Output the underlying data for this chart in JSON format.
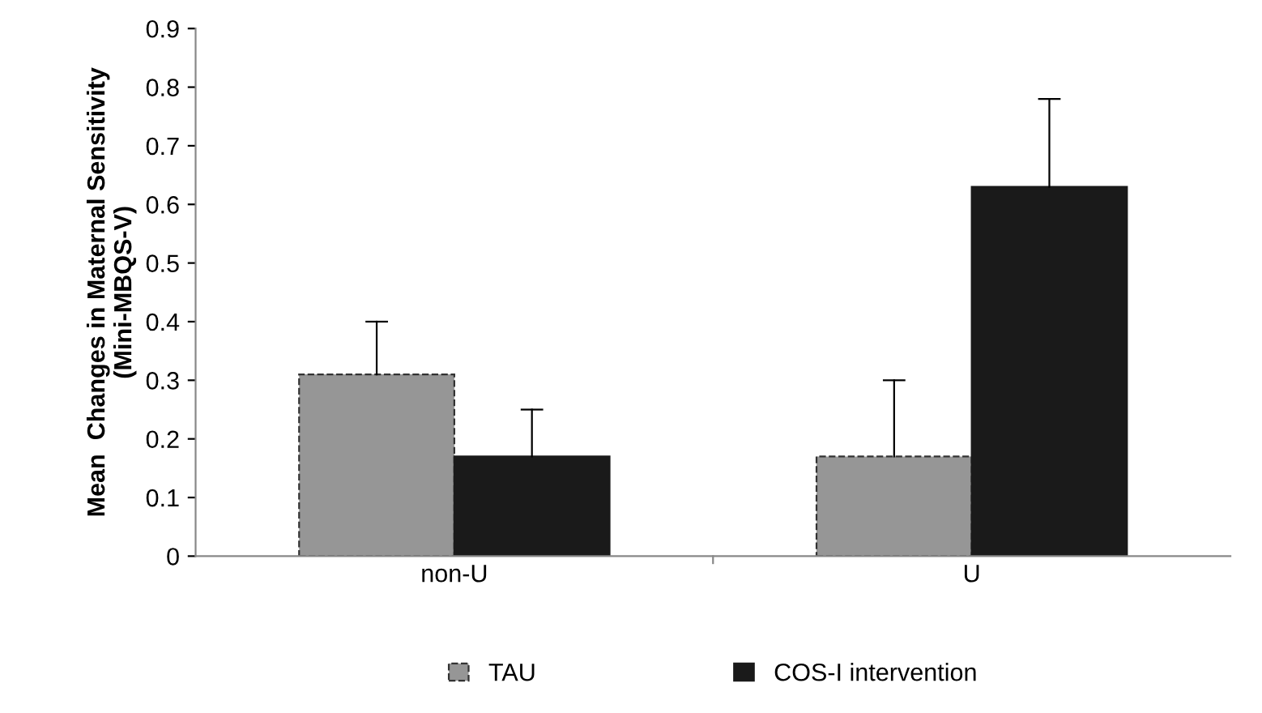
{
  "chart_data": {
    "type": "bar",
    "ylabel": "Mean  Changes in Maternal Sensitivity\n(Mini-MBQS-V)",
    "categories": [
      "non-U",
      "U"
    ],
    "series": [
      {
        "name": "TAU",
        "color": "#969696",
        "values": [
          0.31,
          0.17
        ],
        "errors": [
          [
            0.31,
            0.4
          ],
          [
            0.17,
            0.3
          ]
        ]
      },
      {
        "name": "COS-I intervention",
        "color": "#1a1a1a",
        "values": [
          0.17,
          0.63
        ],
        "errors": [
          [
            0.17,
            0.25
          ],
          [
            0.63,
            0.78
          ]
        ]
      }
    ],
    "ylim": [
      0,
      0.9
    ],
    "yticks": [
      0,
      0.1,
      0.2,
      0.3,
      0.4,
      0.5,
      0.6,
      0.7,
      0.8,
      0.9
    ],
    "grid": false,
    "legend": "bottom"
  }
}
